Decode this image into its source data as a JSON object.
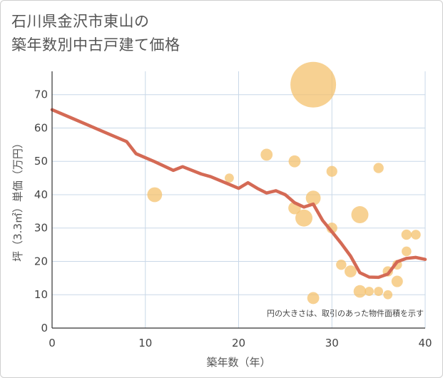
{
  "title_lines": [
    "石川県金沢市東山の",
    "築年数別中古戸建て価格"
  ],
  "chart_data": {
    "type": "scatter",
    "title": "石川県金沢市東山の築年数別中古戸建て価格",
    "xlabel": "築年数（年）",
    "ylabel": "坪（3.3㎡）単価（万円）",
    "xlim": [
      0,
      40
    ],
    "ylim": [
      0,
      77
    ],
    "xticks": [
      0,
      10,
      20,
      30,
      40
    ],
    "yticks": [
      0,
      10,
      20,
      30,
      40,
      50,
      60,
      70
    ],
    "grid": true,
    "annotation": "円の大きさは、取引のあった物件面積を示す",
    "colors": {
      "bubble": "#f4c16e",
      "line": "#d46a55",
      "grid": "#c9d8e8"
    },
    "bubbles": [
      {
        "x": 11,
        "y": 40,
        "size": 2.6
      },
      {
        "x": 19,
        "y": 45,
        "size": 1.6
      },
      {
        "x": 23,
        "y": 52,
        "size": 2.1
      },
      {
        "x": 26,
        "y": 50,
        "size": 2.1
      },
      {
        "x": 26,
        "y": 36,
        "size": 2.2
      },
      {
        "x": 27,
        "y": 33,
        "size": 3.0
      },
      {
        "x": 28,
        "y": 73,
        "size": 8.0
      },
      {
        "x": 28,
        "y": 39,
        "size": 2.6
      },
      {
        "x": 28,
        "y": 9,
        "size": 2.1
      },
      {
        "x": 30,
        "y": 47,
        "size": 1.9
      },
      {
        "x": 30,
        "y": 30,
        "size": 1.9
      },
      {
        "x": 31,
        "y": 19,
        "size": 1.8
      },
      {
        "x": 32,
        "y": 17,
        "size": 2.1
      },
      {
        "x": 33,
        "y": 34,
        "size": 3.0
      },
      {
        "x": 33,
        "y": 11,
        "size": 2.2
      },
      {
        "x": 34,
        "y": 11,
        "size": 1.6
      },
      {
        "x": 35,
        "y": 48,
        "size": 1.8
      },
      {
        "x": 35,
        "y": 11,
        "size": 1.6
      },
      {
        "x": 36,
        "y": 17,
        "size": 1.8
      },
      {
        "x": 36,
        "y": 10,
        "size": 1.6
      },
      {
        "x": 37,
        "y": 19,
        "size": 1.7
      },
      {
        "x": 37,
        "y": 14,
        "size": 2.0
      },
      {
        "x": 38,
        "y": 28,
        "size": 1.8
      },
      {
        "x": 38,
        "y": 23,
        "size": 1.7
      },
      {
        "x": 39,
        "y": 28,
        "size": 1.7
      }
    ],
    "trend": {
      "x": [
        0,
        2,
        4,
        6,
        8,
        9,
        11,
        13,
        14,
        16,
        17,
        19,
        20,
        21,
        22,
        23,
        24,
        25,
        26,
        27,
        28,
        29,
        30,
        31,
        32,
        33,
        34,
        35,
        36,
        37,
        38,
        39,
        40
      ],
      "y": [
        65.5,
        63.1,
        60.7,
        58.3,
        55.9,
        52.3,
        49.9,
        47.3,
        48.4,
        46.2,
        45.4,
        43.1,
        41.9,
        43.6,
        41.9,
        40.5,
        41.2,
        40.0,
        37.6,
        36.3,
        37.2,
        32.3,
        28.9,
        25.4,
        21.6,
        16.6,
        15.3,
        15.2,
        16.2,
        19.9,
        20.9,
        21.2,
        20.6
      ]
    }
  }
}
